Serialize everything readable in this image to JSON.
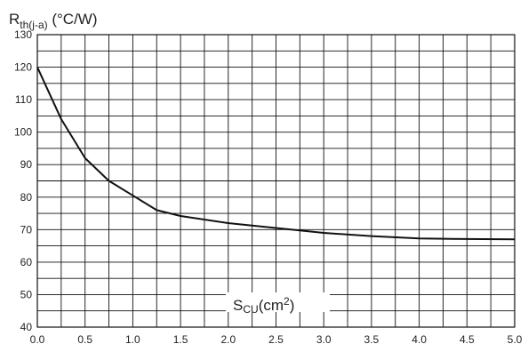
{
  "chart_data": {
    "type": "line",
    "ylabel": {
      "main": "R",
      "sub": "th(j-a)",
      "unit": " (°C/W)"
    },
    "xlabel": {
      "main": "S",
      "sub": "CU",
      "unit": "(cm",
      "sup": "2",
      "close": ")"
    },
    "xlim": [
      0,
      5
    ],
    "ylim": [
      40,
      130
    ],
    "x_ticks": [
      "0.0",
      "0.5",
      "1.0",
      "1.5",
      "2.0",
      "2.5",
      "3.0",
      "3.5",
      "4.0",
      "4.5",
      "5.0"
    ],
    "y_ticks": [
      "40",
      "50",
      "60",
      "70",
      "80",
      "90",
      "100",
      "110",
      "120",
      "130"
    ],
    "x_minor_step": 0.25,
    "y_minor_step": 5,
    "grid": true,
    "colors": {
      "line": "#111111",
      "grid": "#111111"
    },
    "series": [
      {
        "x": [
          0,
          0.25,
          0.5,
          0.75,
          1.0,
          1.25,
          1.5,
          2.0,
          2.5,
          3.0,
          3.5,
          4.0,
          4.5,
          5.0
        ],
        "y": [
          120,
          104,
          92,
          85,
          80.5,
          76,
          74.2,
          72,
          70.5,
          69,
          68,
          67.3,
          67.1,
          67
        ]
      }
    ]
  }
}
